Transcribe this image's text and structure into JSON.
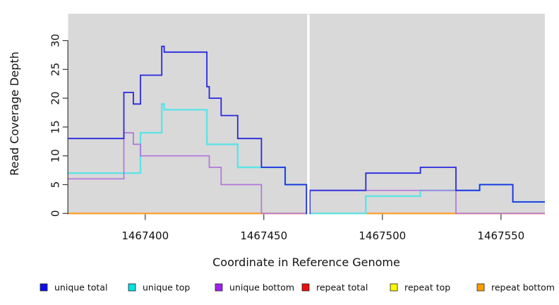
{
  "figure": {
    "background": "#ffffff",
    "panel_background": "#d9d9d9",
    "axis_color": "#3a3a3a",
    "text_color": "#111111"
  },
  "chart_data": {
    "type": "line",
    "subtype": "step-coverage-plot",
    "title": "",
    "xlabel": "Coordinate in Reference Genome",
    "ylabel": "Read Coverage Depth",
    "grid": "off",
    "legend_position": "bottom",
    "x_ticks": [
      1467400,
      1467450,
      1467500,
      1467550
    ],
    "y_ticks": [
      0,
      5,
      10,
      15,
      20,
      25,
      30
    ],
    "x_range": [
      1467367.5,
      1467568.5
    ],
    "ylim": [
      0,
      34.7
    ],
    "x_end": 1467568.5,
    "gap_mask": {
      "x_start": 1467468.3,
      "x_end": 1467469.3,
      "color": "#ffffff",
      "note": "white vertical band masking coordinates ~1467468-1467469"
    },
    "draw_order": [
      "repeat total",
      "repeat top",
      "repeat bottom",
      "unique top",
      "unique bottom",
      "unique total"
    ],
    "series": [
      {
        "name": "unique total",
        "color": "#0d0deb",
        "line_color": "#2828e0",
        "steps": [
          [
            1467367.5,
            13
          ],
          [
            1467391,
            21
          ],
          [
            1467395,
            19
          ],
          [
            1467398,
            24
          ],
          [
            1467407,
            29
          ],
          [
            1467408,
            28
          ],
          [
            1467426,
            22
          ],
          [
            1467427,
            20
          ],
          [
            1467432,
            17
          ],
          [
            1467439,
            13
          ],
          [
            1467449,
            8
          ],
          [
            1467459,
            5
          ],
          [
            1467468,
            0
          ],
          [
            1467469.4,
            4
          ],
          [
            1467493,
            7
          ],
          [
            1467516,
            8
          ],
          [
            1467531,
            4
          ],
          [
            1467541,
            5
          ],
          [
            1467555,
            2
          ]
        ]
      },
      {
        "name": "unique top",
        "color": "#00e3e3",
        "line_color": "#5fe3e6",
        "steps": [
          [
            1467367.5,
            7
          ],
          [
            1467398,
            14
          ],
          [
            1467407,
            19
          ],
          [
            1467408,
            18
          ],
          [
            1467426,
            12
          ],
          [
            1467439,
            8
          ],
          [
            1467459,
            5
          ],
          [
            1467468,
            0
          ],
          [
            1467493,
            3
          ],
          [
            1467516,
            4
          ],
          [
            1467541,
            5
          ],
          [
            1467555,
            2
          ]
        ]
      },
      {
        "name": "unique bottom",
        "color": "#a021f0",
        "line_color": "#b175dc",
        "steps": [
          [
            1467367.5,
            6
          ],
          [
            1467391,
            14
          ],
          [
            1467395,
            12
          ],
          [
            1467398,
            10
          ],
          [
            1467427,
            8
          ],
          [
            1467432,
            5
          ],
          [
            1467449,
            0
          ],
          [
            1467469.4,
            4
          ],
          [
            1467531,
            0
          ]
        ]
      },
      {
        "name": "repeat total",
        "color": "#ea0e0e",
        "line_color": "#e03636",
        "steps": [
          [
            1467367.5,
            0
          ]
        ]
      },
      {
        "name": "repeat top",
        "color": "#f8f800",
        "line_color": "#f2f23d",
        "steps": [
          [
            1467367.5,
            0
          ]
        ]
      },
      {
        "name": "repeat bottom",
        "color": "#ff9d00",
        "line_color": "#ff9c1e",
        "steps": [
          [
            1467367.5,
            0
          ]
        ]
      }
    ]
  }
}
